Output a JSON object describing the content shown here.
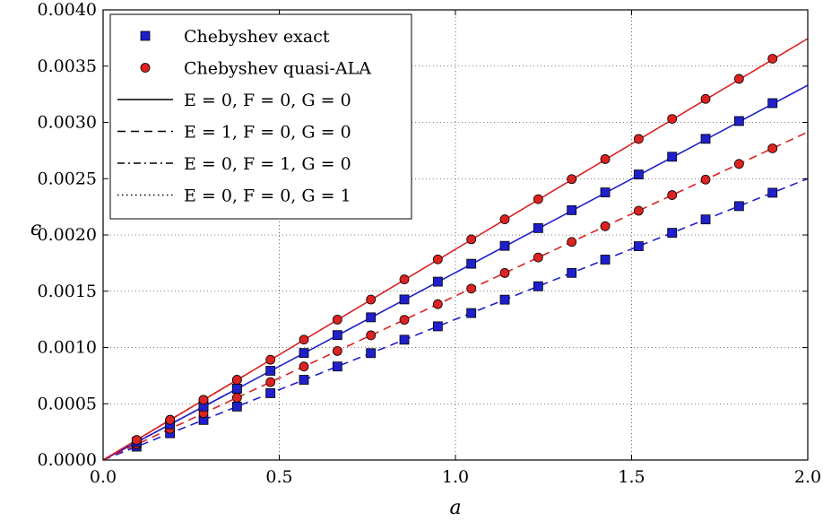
{
  "chart_data": {
    "type": "line",
    "xlabel": "a",
    "ylabel": "ϵ",
    "xlim": [
      0.0,
      2.0
    ],
    "ylim": [
      0.0,
      0.004
    ],
    "xticks": [
      "0.0",
      "0.5",
      "1.0",
      "1.5",
      "2.0"
    ],
    "yticks": [
      "0.0000",
      "0.0005",
      "0.0010",
      "0.0015",
      "0.0020",
      "0.0025",
      "0.0030",
      "0.0035",
      "0.0040"
    ],
    "grid": true,
    "legend_position": "top-left",
    "legend": [
      {
        "label": "Chebyshev exact",
        "style": "square-marker"
      },
      {
        "label": "Chebyshev quasi-ALA",
        "style": "circle-marker"
      },
      {
        "label": "E = 0,  F = 0,  G = 0",
        "style": "solid"
      },
      {
        "label": "E = 1,  F = 0,  G = 0",
        "style": "dashed"
      },
      {
        "label": "E = 0,  F = 1,  G = 0",
        "style": "dashdot"
      },
      {
        "label": "E = 0,  F = 0,  G = 1",
        "style": "dotted"
      }
    ],
    "colors": {
      "exact": "#1f1fcc",
      "ala": "#dd2222"
    },
    "series": [
      {
        "method": "exact",
        "style": "solid",
        "line": [
          [
            0,
            0
          ],
          [
            2.0,
            0.00333
          ]
        ],
        "x": [
          0.095,
          0.19,
          0.285,
          0.38,
          0.475,
          0.57,
          0.665,
          0.76,
          0.855,
          0.95,
          1.045,
          1.14,
          1.235,
          1.33,
          1.425,
          1.52,
          1.615,
          1.71,
          1.805,
          1.9
        ],
        "y": [
          0.000159,
          0.000317,
          0.000476,
          0.000634,
          0.000793,
          0.000951,
          0.00111,
          0.001268,
          0.001427,
          0.001585,
          0.001744,
          0.001903,
          0.002061,
          0.00222,
          0.002378,
          0.002537,
          0.002695,
          0.002854,
          0.003012,
          0.003171
        ]
      },
      {
        "method": "ala",
        "style": "solid",
        "line": [
          [
            0,
            0
          ],
          [
            2.0,
            0.003745
          ]
        ],
        "x": [
          0.095,
          0.19,
          0.285,
          0.38,
          0.475,
          0.57,
          0.665,
          0.76,
          0.855,
          0.95,
          1.045,
          1.14,
          1.235,
          1.33,
          1.425,
          1.52,
          1.615,
          1.71,
          1.805,
          1.9
        ],
        "y": [
          0.000178,
          0.000357,
          0.000535,
          0.000713,
          0.000891,
          0.00107,
          0.001248,
          0.001426,
          0.001605,
          0.001783,
          0.001961,
          0.002139,
          0.002318,
          0.002496,
          0.002674,
          0.002853,
          0.003031,
          0.003209,
          0.003387,
          0.003566
        ]
      },
      {
        "method": "exact",
        "style": "dashed",
        "line": [
          [
            0,
            0
          ],
          [
            2.0,
            0.0025
          ]
        ],
        "x": [
          0.095,
          0.19,
          0.285,
          0.38,
          0.475,
          0.57,
          0.665,
          0.76,
          0.855,
          0.95,
          1.045,
          1.14,
          1.235,
          1.33,
          1.425,
          1.52,
          1.615,
          1.71,
          1.805,
          1.9
        ],
        "y": [
          0.000119,
          0.000238,
          0.000356,
          0.000475,
          0.000594,
          0.000713,
          0.000831,
          0.00095,
          0.001069,
          0.001188,
          0.001306,
          0.001425,
          0.001544,
          0.001663,
          0.001781,
          0.0019,
          0.002019,
          0.002138,
          0.002256,
          0.002375
        ]
      },
      {
        "method": "ala",
        "style": "dashed",
        "line": [
          [
            0,
            0
          ],
          [
            2.0,
            0.002915
          ]
        ],
        "x": [
          0.095,
          0.19,
          0.285,
          0.38,
          0.475,
          0.57,
          0.665,
          0.76,
          0.855,
          0.95,
          1.045,
          1.14,
          1.235,
          1.33,
          1.425,
          1.52,
          1.615,
          1.71,
          1.805,
          1.9
        ],
        "y": [
          0.000138,
          0.000277,
          0.000415,
          0.000554,
          0.000692,
          0.000831,
          0.000969,
          0.001108,
          0.001246,
          0.001385,
          0.001523,
          0.001662,
          0.0018,
          0.001938,
          0.002077,
          0.002215,
          0.002354,
          0.002492,
          0.002631,
          0.002769
        ]
      },
      {
        "method": "exact",
        "style": "dashdot",
        "line": [
          [
            0,
            0
          ],
          [
            0.4,
            0.000666
          ]
        ],
        "x": [
          0.095,
          0.19,
          0.285,
          0.38
        ],
        "y": [
          0.000159,
          0.000317,
          0.000476,
          0.000634
        ]
      },
      {
        "method": "ala",
        "style": "dashdot",
        "line": [
          [
            0,
            0
          ],
          [
            0.4,
            0.000749
          ]
        ],
        "x": [
          0.095,
          0.19,
          0.285,
          0.38
        ],
        "y": [
          0.000178,
          0.000357,
          0.000535,
          0.000713
        ]
      },
      {
        "method": "exact",
        "style": "dotted",
        "line": [
          [
            0,
            0
          ],
          [
            0.4,
            0.000666
          ]
        ],
        "x": [],
        "y": []
      },
      {
        "method": "ala",
        "style": "dotted",
        "line": [
          [
            0,
            0
          ],
          [
            0.4,
            0.000749
          ]
        ],
        "x": [],
        "y": []
      }
    ]
  }
}
